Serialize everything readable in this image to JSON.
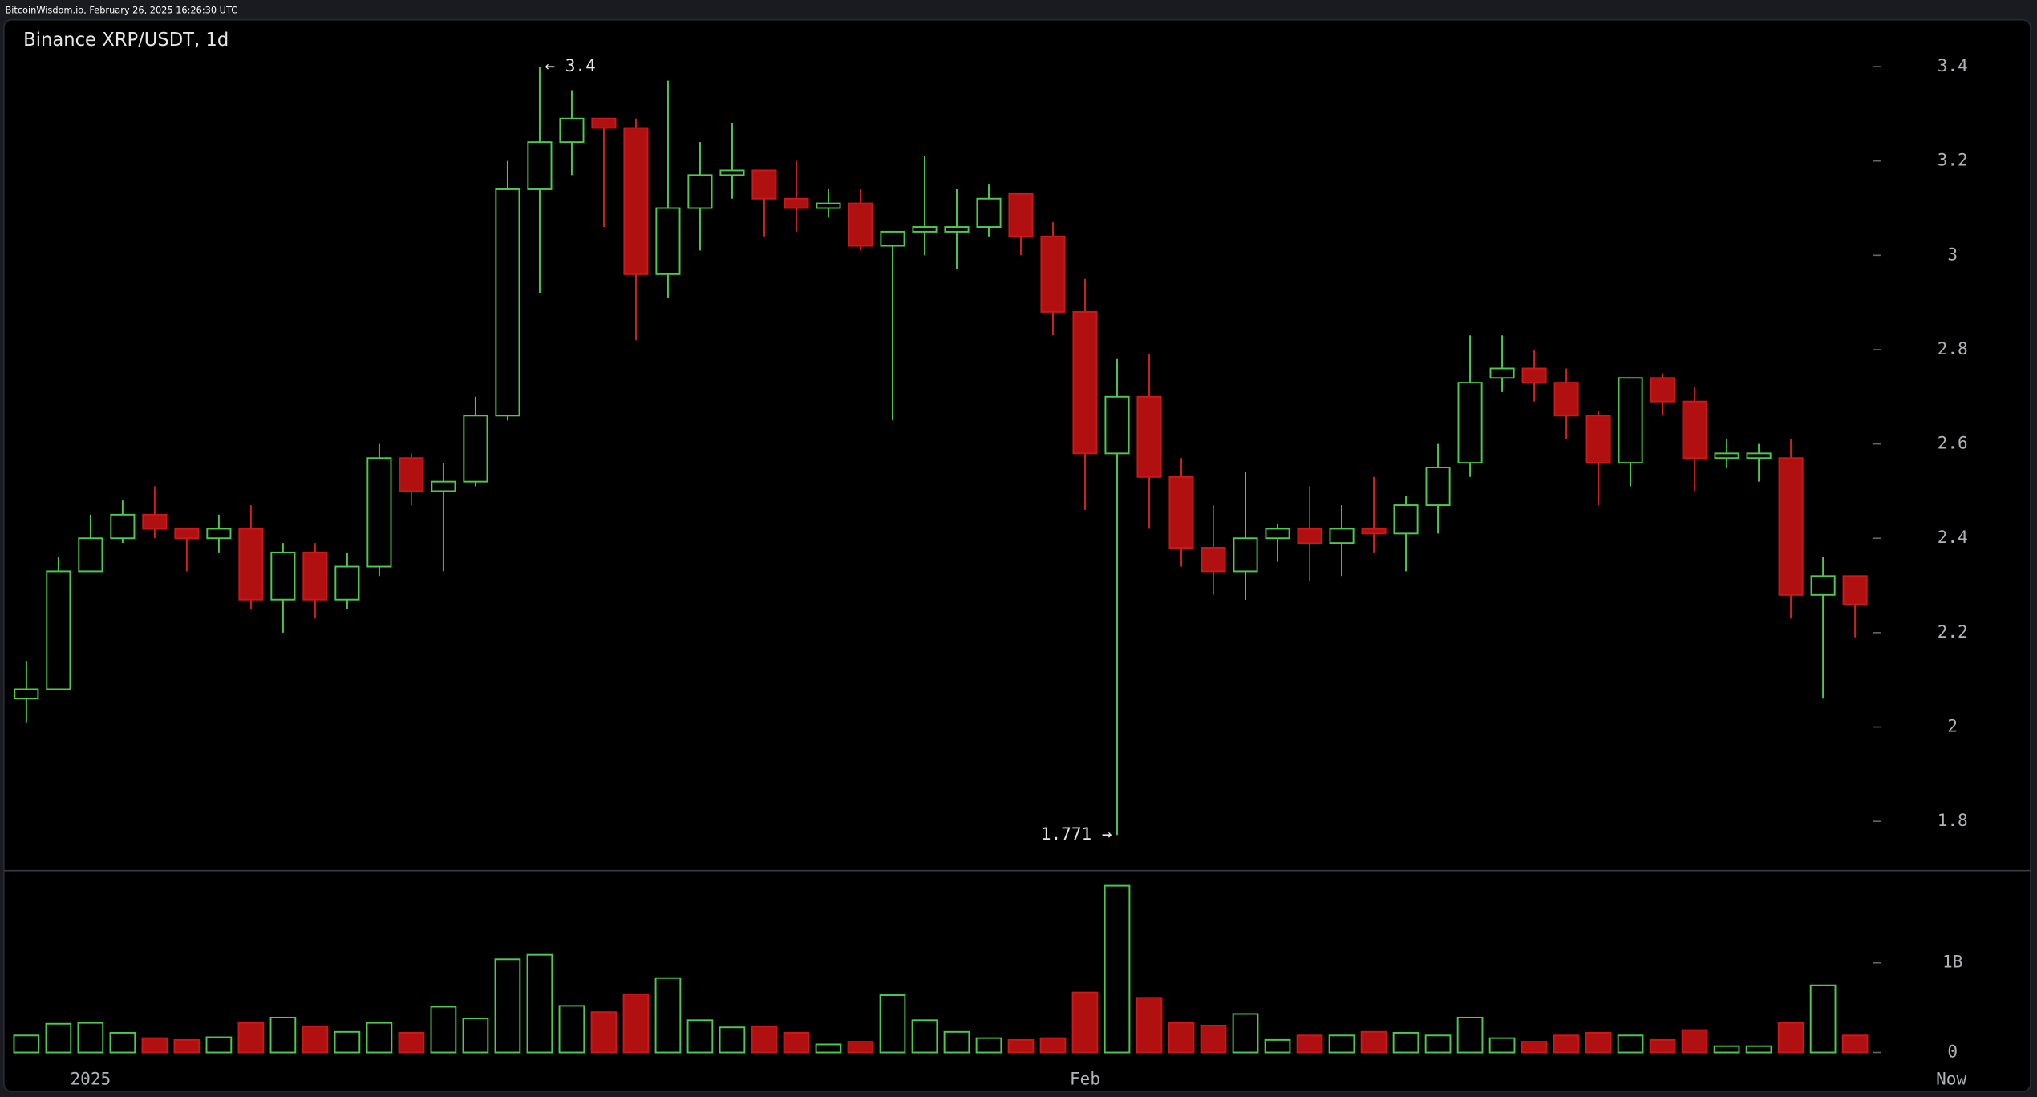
{
  "header": "BitcoinWisdom.io, February 26, 2025 16:26:30 UTC",
  "chart_data": [
    {
      "type": "candlestick",
      "title": "Binance XRP/USDT, 1d",
      "open": [
        2.06,
        2.08,
        2.33,
        2.4,
        2.45,
        2.42,
        2.4,
        2.42,
        2.27,
        2.37,
        2.27,
        2.34,
        2.57,
        2.5,
        2.52,
        2.66,
        3.14,
        3.24,
        3.29,
        3.27,
        2.96,
        3.1,
        3.17,
        3.18,
        3.12,
        3.1,
        3.11,
        3.02,
        3.05,
        3.05,
        3.06,
        3.13,
        3.04,
        2.88,
        2.58,
        2.7,
        2.53,
        2.38,
        2.33,
        2.4,
        2.42,
        2.39,
        2.42,
        2.41,
        2.47,
        2.56,
        2.74,
        2.76,
        2.73,
        2.66,
        2.56,
        2.74,
        2.69,
        2.57,
        2.57,
        2.57,
        2.28,
        2.32
      ],
      "high": [
        2.14,
        2.36,
        2.45,
        2.48,
        2.51,
        2.42,
        2.45,
        2.47,
        2.39,
        2.39,
        2.37,
        2.6,
        2.58,
        2.56,
        2.7,
        3.2,
        3.4,
        3.35,
        3.29,
        3.29,
        3.37,
        3.24,
        3.28,
        3.18,
        3.2,
        3.14,
        3.14,
        3.05,
        3.21,
        3.14,
        3.15,
        3.13,
        3.07,
        2.95,
        2.78,
        2.79,
        2.57,
        2.47,
        2.54,
        2.43,
        2.51,
        2.47,
        2.53,
        2.49,
        2.6,
        2.83,
        2.83,
        2.8,
        2.76,
        2.67,
        2.74,
        2.75,
        2.72,
        2.61,
        2.6,
        2.61,
        2.36,
        2.32
      ],
      "low": [
        2.01,
        2.08,
        2.33,
        2.39,
        2.4,
        2.33,
        2.37,
        2.25,
        2.2,
        2.23,
        2.25,
        2.32,
        2.47,
        2.33,
        2.51,
        2.65,
        2.92,
        3.17,
        3.06,
        2.82,
        2.91,
        3.01,
        3.12,
        3.04,
        3.05,
        3.08,
        3.01,
        2.65,
        3.0,
        2.97,
        3.04,
        3.0,
        2.83,
        2.46,
        1.771,
        2.42,
        2.34,
        2.28,
        2.27,
        2.35,
        2.31,
        2.32,
        2.37,
        2.33,
        2.41,
        2.53,
        2.71,
        2.69,
        2.61,
        2.47,
        2.51,
        2.66,
        2.5,
        2.55,
        2.52,
        2.23,
        2.06,
        2.19
      ],
      "close": [
        2.08,
        2.33,
        2.4,
        2.45,
        2.42,
        2.4,
        2.42,
        2.27,
        2.37,
        2.27,
        2.34,
        2.57,
        2.5,
        2.52,
        2.66,
        3.14,
        3.24,
        3.29,
        3.27,
        2.96,
        3.1,
        3.17,
        3.18,
        3.12,
        3.1,
        3.11,
        3.02,
        3.05,
        3.06,
        3.06,
        3.12,
        3.04,
        2.88,
        2.58,
        2.7,
        2.53,
        2.38,
        2.33,
        2.4,
        2.42,
        2.39,
        2.42,
        2.41,
        2.47,
        2.55,
        2.73,
        2.76,
        2.73,
        2.66,
        2.56,
        2.74,
        2.69,
        2.57,
        2.58,
        2.58,
        2.28,
        2.32,
        2.26
      ],
      "up_color": "#4fc84f",
      "down_color": "#b0100f",
      "ylim": [
        1.7,
        3.5
      ],
      "yticks": [
        3.4,
        3.2,
        3,
        2.8,
        2.6,
        2.4,
        2.2,
        2,
        1.8
      ],
      "high_label": "← 3.4",
      "low_label": "1.771 →"
    },
    {
      "type": "bar",
      "values": [
        190000000.0,
        320000000.0,
        330000000.0,
        220000000.0,
        160000000.0,
        140000000.0,
        170000000.0,
        330000000.0,
        390000000.0,
        290000000.0,
        230000000.0,
        330000000.0,
        220000000.0,
        510000000.0,
        380000000.0,
        1040000000.0,
        1090000000.0,
        520000000.0,
        450000000.0,
        650000000.0,
        830000000.0,
        360000000.0,
        280000000.0,
        290000000.0,
        220000000.0,
        90000000.0,
        120000000.0,
        640000000.0,
        360000000.0,
        230000000.0,
        160000000.0,
        140000000.0,
        160000000.0,
        670000000.0,
        1860000000.0,
        610000000.0,
        330000000.0,
        300000000.0,
        430000000.0,
        140000000.0,
        190000000.0,
        190000000.0,
        230000000.0,
        220000000.0,
        190000000.0,
        390000000.0,
        160000000.0,
        120000000.0,
        190000000.0,
        220000000.0,
        190000000.0,
        140000000.0,
        250000000.0,
        70000000.0,
        70000000.0,
        330000000.0,
        750000000.0,
        190000000.0
      ],
      "ylim": [
        0,
        2000000000
      ],
      "yticks": [
        0,
        {
          "value": 1000000000,
          "label": "1B"
        }
      ],
      "xlim": [
        -0.7,
        62.55
      ],
      "xticks": [
        {
          "value": 2,
          "label": "2025"
        },
        {
          "value": 33,
          "label": "Feb"
        },
        {
          "value": 60,
          "label": "Now"
        }
      ]
    }
  ]
}
